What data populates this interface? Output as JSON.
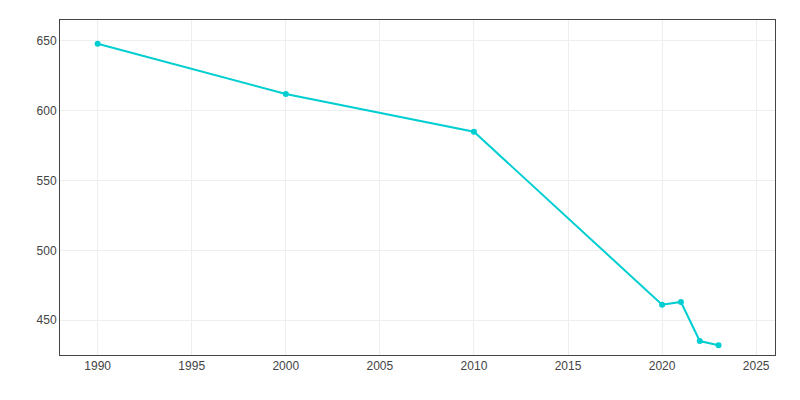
{
  "chart_data": {
    "type": "line",
    "x": [
      1990,
      2000,
      2010,
      2020,
      2021,
      2022,
      2023
    ],
    "values": [
      648,
      612,
      585,
      461,
      463,
      435,
      432
    ],
    "color": "#00CED1",
    "marker": "o",
    "xlim": [
      1988,
      2026
    ],
    "ylim": [
      425,
      665
    ],
    "xticks": [
      1990,
      1995,
      2000,
      2005,
      2010,
      2015,
      2020,
      2025
    ],
    "yticks": [
      450,
      500,
      550,
      600,
      650
    ],
    "grid": true
  }
}
